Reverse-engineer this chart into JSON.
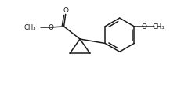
{
  "bg_color": "#ffffff",
  "line_color": "#1a1a1a",
  "line_width": 1.1,
  "figsize": [
    2.17,
    1.15
  ],
  "dpi": 100,
  "xlim": [
    0,
    10
  ],
  "ylim": [
    0,
    5
  ]
}
